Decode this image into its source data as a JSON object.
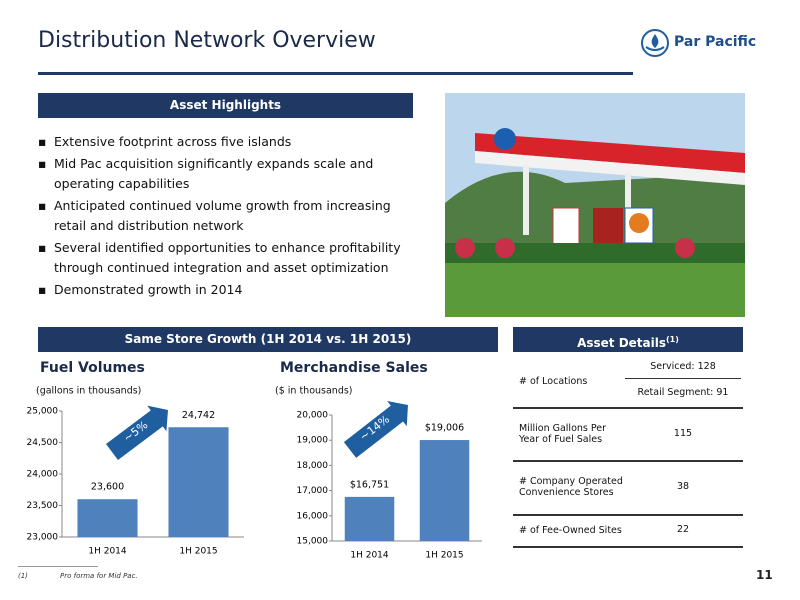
{
  "title": "Distribution Network Overview",
  "logo": "Par Pacific",
  "asset_highlights": {
    "heading": "Asset Highlights",
    "bullets": [
      "Extensive footprint across five islands",
      "Mid Pac acquisition significantly expands scale and operating capabilities",
      "Anticipated continued volume growth from increasing retail and distribution network",
      "Several identified opportunities to enhance profitability through continued integration and asset optimization",
      "Demonstrated growth in 2014"
    ]
  },
  "growth_heading": "Same Store Growth (1H 2014 vs. 1H 2015)",
  "chart_data": [
    {
      "type": "bar",
      "title": "Fuel Volumes",
      "subtitle": "(gallons in thousands)",
      "categories": [
        "1H 2014",
        "1H 2015"
      ],
      "values": [
        23600,
        24742
      ],
      "value_labels": [
        "23,600",
        "24,742"
      ],
      "color": "#4f81bd",
      "annotation": "~5%",
      "ylim": [
        23000,
        25000
      ],
      "yticks": [
        {
          "value": 23000,
          "label": "23,000"
        },
        {
          "value": 23500,
          "label": "23,500"
        },
        {
          "value": 24000,
          "label": "24,000"
        },
        {
          "value": 24500,
          "label": "24,500"
        },
        {
          "value": 25000,
          "label": "25,000"
        }
      ]
    },
    {
      "type": "bar",
      "title": "Merchandise Sales",
      "subtitle": "($ in thousands)",
      "categories": [
        "1H 2014",
        "1H 2015"
      ],
      "values": [
        16751,
        19006
      ],
      "value_labels": [
        "$16,751",
        "$19,006"
      ],
      "color": "#4f81bd",
      "annotation": "~14%",
      "ylim": [
        15000,
        20000
      ],
      "yticks": [
        {
          "value": 15000,
          "label": "15,000"
        },
        {
          "value": 16000,
          "label": "16,000"
        },
        {
          "value": 17000,
          "label": "17,000"
        },
        {
          "value": 18000,
          "label": "18,000"
        },
        {
          "value": 19000,
          "label": "19,000"
        },
        {
          "value": 20000,
          "label": "20,000"
        }
      ]
    }
  ],
  "asset_details": {
    "heading": "Asset Details",
    "heading_note": "(1)",
    "rows": [
      [
        "# of Locations",
        "Serviced: 128",
        "Retail Segment: 91"
      ],
      [
        "Million Gallons Per Year of Fuel Sales",
        "115"
      ],
      [
        "# Company Operated Convenience Stores",
        "38"
      ],
      [
        "# of Fee-Owned Sites",
        "22"
      ]
    ]
  },
  "footnote": {
    "marker": "(1)",
    "text": "Pro forma for Mid Pac."
  },
  "page_number": "11"
}
